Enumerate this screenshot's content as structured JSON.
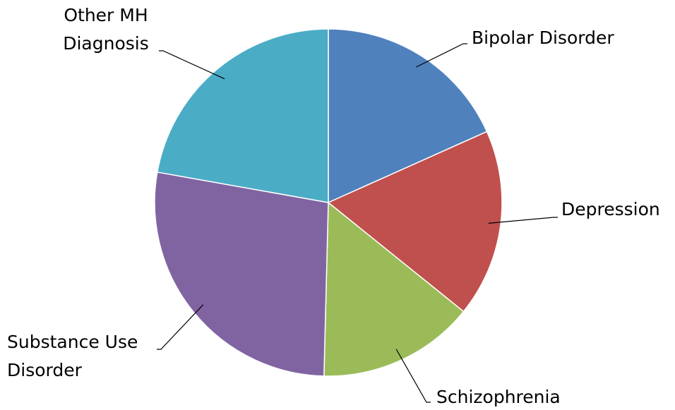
{
  "chart_data": {
    "type": "pie",
    "categories": [
      "Bipolar Disorder",
      "Depression",
      "Schizophrenia",
      "Substance Use Disorder",
      "Other MH Diagnosis"
    ],
    "values": [
      18.3,
      17.5,
      14.6,
      27.4,
      22.2
    ],
    "colors": [
      "#4f81bd",
      "#c0504d",
      "#9bbb59",
      "#8064a2",
      "#4bacc6"
    ]
  }
}
